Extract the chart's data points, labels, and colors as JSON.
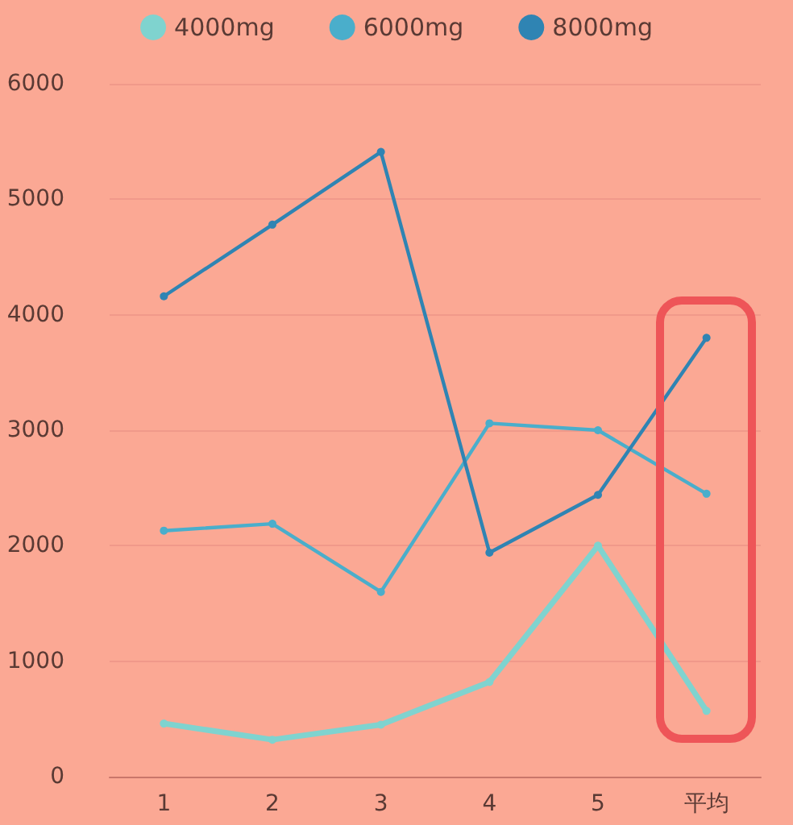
{
  "chart_data": {
    "type": "line",
    "categories": [
      "1",
      "2",
      "3",
      "4",
      "5",
      "平均"
    ],
    "series": [
      {
        "name": "4000mg",
        "color": "#7fd3cf",
        "values": [
          460,
          320,
          450,
          820,
          2000,
          570
        ]
      },
      {
        "name": "6000mg",
        "color": "#4aaecb",
        "values": [
          2130,
          2190,
          1600,
          3060,
          3000,
          2450
        ]
      },
      {
        "name": "8000mg",
        "color": "#2f84b3",
        "values": [
          4160,
          4780,
          5410,
          1940,
          2440,
          3800
        ]
      }
    ],
    "ylim": [
      0,
      6000
    ],
    "yticks": [
      0,
      1000,
      2000,
      3000,
      4000,
      5000,
      6000
    ],
    "grid": "y",
    "legend": "top",
    "marker": "circle",
    "line_style": "solid"
  }
}
